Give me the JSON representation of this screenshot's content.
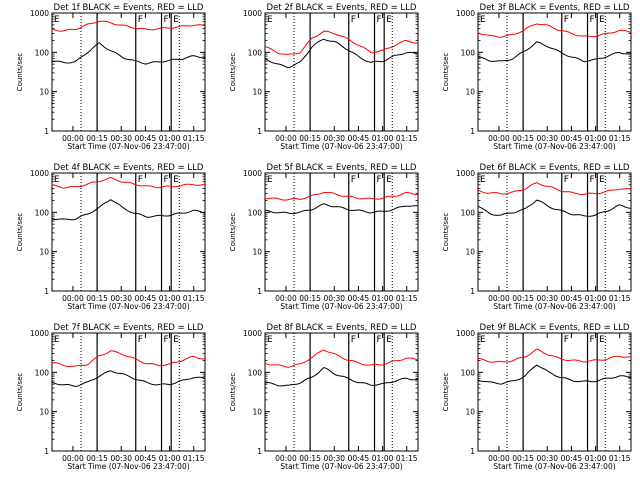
{
  "chart_data": {
    "type": "line",
    "layout": "3x3 grid of line plots",
    "y_scale": "log",
    "ylim": [
      1,
      1000
    ],
    "y_ticks": [
      "1",
      "10",
      "100",
      "1000"
    ],
    "y_label": "Counts/sec",
    "x_label": "Start Time (07-Nov-06 23:47:00)",
    "x_ticks": [
      "00:00",
      "00:15",
      "00:30",
      "00:45",
      "01:00",
      "01:15"
    ],
    "xlim_minutes_after_start": [
      0,
      95
    ],
    "x_tick_minutes_after_start": [
      13,
      28,
      43,
      58,
      73,
      88
    ],
    "series_colors": {
      "events": "#000000",
      "lld": "#ff0000"
    },
    "marker_lines": [
      {
        "label": "",
        "minute": 28,
        "style": "solid"
      },
      {
        "label": "F",
        "minute": 52,
        "style": "solid"
      },
      {
        "label": "F",
        "minute": 68,
        "style": "solid"
      },
      {
        "label": "E",
        "minute": 74,
        "style": "solid"
      }
    ],
    "dotted_lines_minutes": [
      18,
      79
    ],
    "corner_label_left": "E",
    "panels": [
      {
        "title": "Det 1f BLACK = Events, RED = LLD",
        "events": [
          60,
          55,
          57,
          100,
          170,
          110,
          75,
          60,
          52,
          57,
          62,
          68,
          80,
          75
        ],
        "lld": [
          380,
          350,
          390,
          500,
          630,
          560,
          480,
          420,
          380,
          400,
          420,
          450,
          500,
          470
        ]
      },
      {
        "title": "Det 2f BLACK = Events, RED = LLD",
        "events": [
          70,
          50,
          42,
          55,
          140,
          220,
          180,
          120,
          75,
          55,
          60,
          80,
          100,
          90
        ],
        "lld": [
          140,
          100,
          85,
          100,
          230,
          340,
          300,
          220,
          150,
          100,
          110,
          150,
          200,
          170
        ]
      },
      {
        "title": "Det 3f BLACK = Events, RED = LLD",
        "events": [
          75,
          62,
          58,
          70,
          110,
          180,
          140,
          100,
          75,
          60,
          65,
          80,
          100,
          90
        ],
        "lld": [
          320,
          260,
          250,
          280,
          380,
          550,
          470,
          360,
          300,
          250,
          260,
          300,
          360,
          330
        ]
      },
      {
        "title": "Det 4f BLACK = Events, RED = LLD",
        "events": [
          70,
          65,
          68,
          90,
          130,
          220,
          130,
          95,
          78,
          80,
          85,
          95,
          110,
          100
        ],
        "lld": [
          480,
          430,
          440,
          520,
          620,
          740,
          600,
          520,
          460,
          440,
          450,
          480,
          520,
          480
        ]
      },
      {
        "title": "Det 5f BLACK = Events, RED = LLD",
        "events": [
          110,
          100,
          95,
          100,
          120,
          160,
          140,
          120,
          110,
          100,
          105,
          120,
          150,
          140
        ],
        "lld": [
          230,
          220,
          210,
          220,
          260,
          330,
          290,
          250,
          230,
          220,
          230,
          260,
          310,
          290
        ]
      },
      {
        "title": "Det 6f BLACK = Events, RED = LLD",
        "events": [
          150,
          90,
          85,
          100,
          120,
          210,
          140,
          110,
          90,
          80,
          85,
          110,
          150,
          130
        ],
        "lld": [
          350,
          310,
          300,
          320,
          400,
          560,
          450,
          360,
          310,
          290,
          300,
          340,
          400,
          380
        ]
      },
      {
        "title": "Det 7f BLACK = Events, RED = LLD",
        "events": [
          55,
          48,
          45,
          55,
          80,
          110,
          90,
          70,
          55,
          48,
          50,
          60,
          75,
          70
        ],
        "lld": [
          180,
          150,
          140,
          160,
          260,
          350,
          290,
          220,
          170,
          150,
          160,
          200,
          250,
          220
        ]
      },
      {
        "title": "Det 8f BLACK = Events, RED = LLD",
        "events": [
          55,
          48,
          45,
          55,
          75,
          130,
          90,
          70,
          55,
          48,
          50,
          60,
          70,
          65
        ],
        "lld": [
          170,
          150,
          140,
          160,
          240,
          380,
          280,
          210,
          170,
          150,
          160,
          190,
          230,
          210
        ]
      },
      {
        "title": "Det 9f BLACK = Events, RED = LLD",
        "events": [
          65,
          55,
          52,
          60,
          80,
          160,
          100,
          75,
          62,
          58,
          60,
          70,
          80,
          75
        ],
        "lld": [
          220,
          190,
          180,
          200,
          250,
          380,
          280,
          220,
          200,
          190,
          200,
          220,
          260,
          240
        ]
      }
    ]
  }
}
